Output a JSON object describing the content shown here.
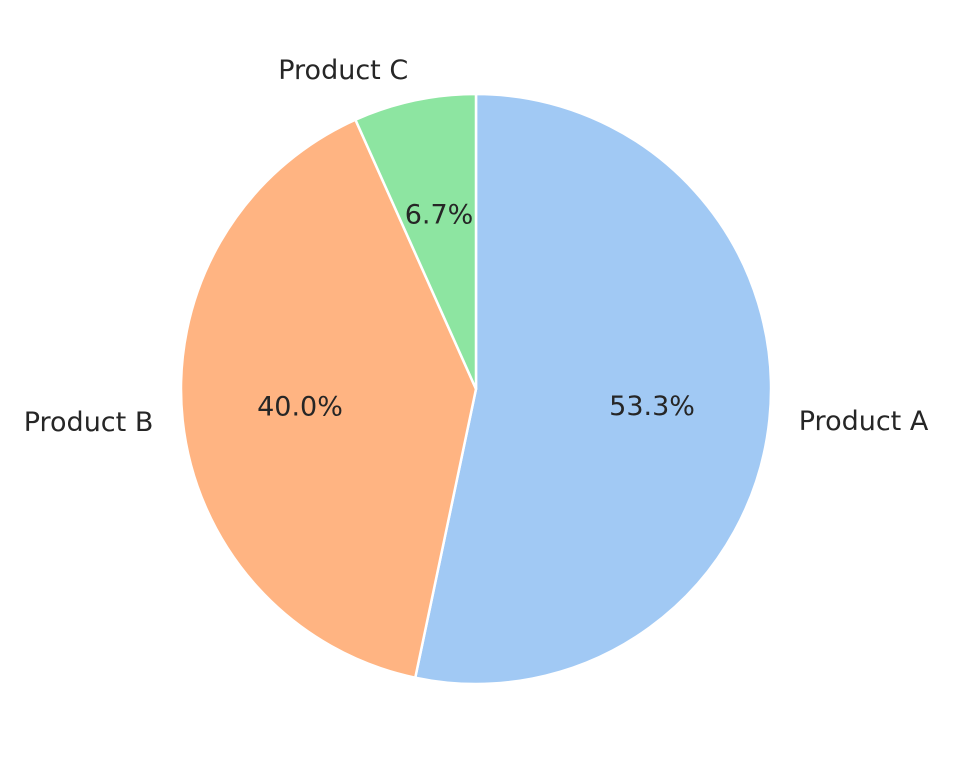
{
  "chart_data": {
    "type": "pie",
    "categories": [
      "Product A",
      "Product B",
      "Product C"
    ],
    "values": [
      53.3,
      40.0,
      6.7
    ],
    "percent_labels": [
      "53.3%",
      "40.0%",
      "6.7%"
    ],
    "colors": [
      "#a1c9f4",
      "#ffb482",
      "#8de5a1"
    ],
    "start_angle_deg": 90,
    "direction": "clockwise",
    "legend": "none"
  }
}
